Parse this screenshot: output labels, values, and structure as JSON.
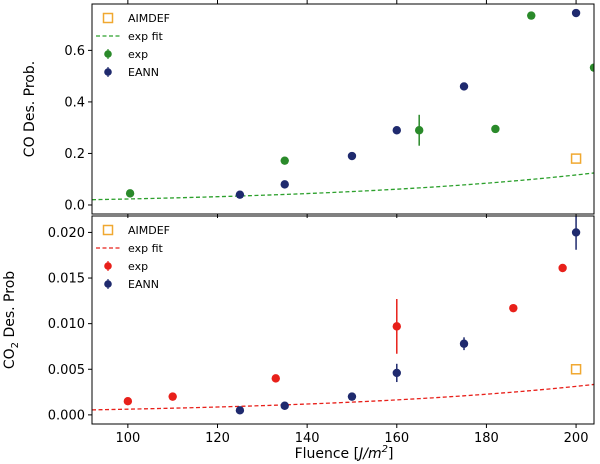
{
  "chart_data": [
    {
      "type": "scatter",
      "ylabel": "CO Des. Prob.",
      "xlim": [
        92,
        204
      ],
      "ylim": [
        -0.035,
        0.78
      ],
      "yticks": [
        "0.0",
        "0.2",
        "0.4",
        "0.6"
      ],
      "yticks_values": [
        0.0,
        0.2,
        0.4,
        0.6
      ],
      "legend": [
        "AIMDEF",
        "exp fit",
        "exp",
        "EANN"
      ],
      "legend_position": "top-left",
      "series": [
        {
          "name": "AIMDEF",
          "kind": "open-square",
          "color": "#f0a830",
          "x": [
            200
          ],
          "y": [
            0.18
          ],
          "err": [
            0
          ]
        },
        {
          "name": "exp fit",
          "kind": "dashed-line",
          "color": "#2ca02c",
          "func": {
            "a": 0.0233,
            "b": 0.0161
          }
        },
        {
          "name": "exp",
          "kind": "marker",
          "color": "#2a8a2a",
          "x": [
            100.5,
            135,
            165,
            182,
            190,
            204
          ],
          "y": [
            0.045,
            0.172,
            0.29,
            0.295,
            0.735,
            0.533
          ],
          "err": [
            0,
            0,
            0.06,
            0,
            0,
            0
          ]
        },
        {
          "name": "EANN",
          "kind": "marker",
          "color": "#1f2a6e",
          "x": [
            125,
            135,
            150,
            160,
            175,
            200
          ],
          "y": [
            0.04,
            0.08,
            0.19,
            0.29,
            0.46,
            0.745
          ],
          "err": [
            0,
            0,
            0,
            0,
            0,
            0
          ]
        }
      ]
    },
    {
      "type": "scatter",
      "ylabel_main": "CO",
      "ylabel_sub": "2",
      "ylabel_rest": " Des. Prob",
      "xlabel_main": "Fluence ",
      "xlabel_bracket_open": "[",
      "xlabel_unit": "J/m",
      "xlabel_sup": "2",
      "xlabel_bracket_close": "]",
      "xlim": [
        92,
        204
      ],
      "ylim": [
        -0.001,
        0.0218
      ],
      "xticks": [
        "100",
        "120",
        "140",
        "160",
        "180",
        "200"
      ],
      "xticks_values": [
        100,
        120,
        140,
        160,
        180,
        200
      ],
      "yticks": [
        "0.000",
        "0.005",
        "0.010",
        "0.015",
        "0.020"
      ],
      "yticks_values": [
        0.0,
        0.005,
        0.01,
        0.015,
        0.02
      ],
      "legend": [
        "AIMDEF",
        "exp fit",
        "exp",
        "EANN"
      ],
      "legend_position": "top-left",
      "series": [
        {
          "name": "AIMDEF",
          "kind": "open-square",
          "color": "#f0a830",
          "x": [
            200
          ],
          "y": [
            0.005
          ],
          "err": [
            0
          ]
        },
        {
          "name": "exp fit",
          "kind": "dashed-line",
          "color": "#e8201a",
          "func": {
            "a": 0.000625,
            "b": 0.0161
          }
        },
        {
          "name": "exp",
          "kind": "marker",
          "color": "#e8201a",
          "x": [
            100,
            110,
            133,
            160,
            186,
            197
          ],
          "y": [
            0.0015,
            0.002,
            0.004,
            0.0097,
            0.0117,
            0.0161
          ],
          "err": [
            0,
            0,
            0,
            0.003,
            0,
            0
          ]
        },
        {
          "name": "EANN",
          "kind": "marker",
          "color": "#1f2a6e",
          "x": [
            125,
            135,
            150,
            160,
            175,
            200
          ],
          "y": [
            0.0005,
            0.001,
            0.002,
            0.0046,
            0.0078,
            0.02
          ],
          "err": [
            0,
            0,
            0,
            0.001,
            0.0007,
            0.0019
          ]
        }
      ]
    }
  ]
}
